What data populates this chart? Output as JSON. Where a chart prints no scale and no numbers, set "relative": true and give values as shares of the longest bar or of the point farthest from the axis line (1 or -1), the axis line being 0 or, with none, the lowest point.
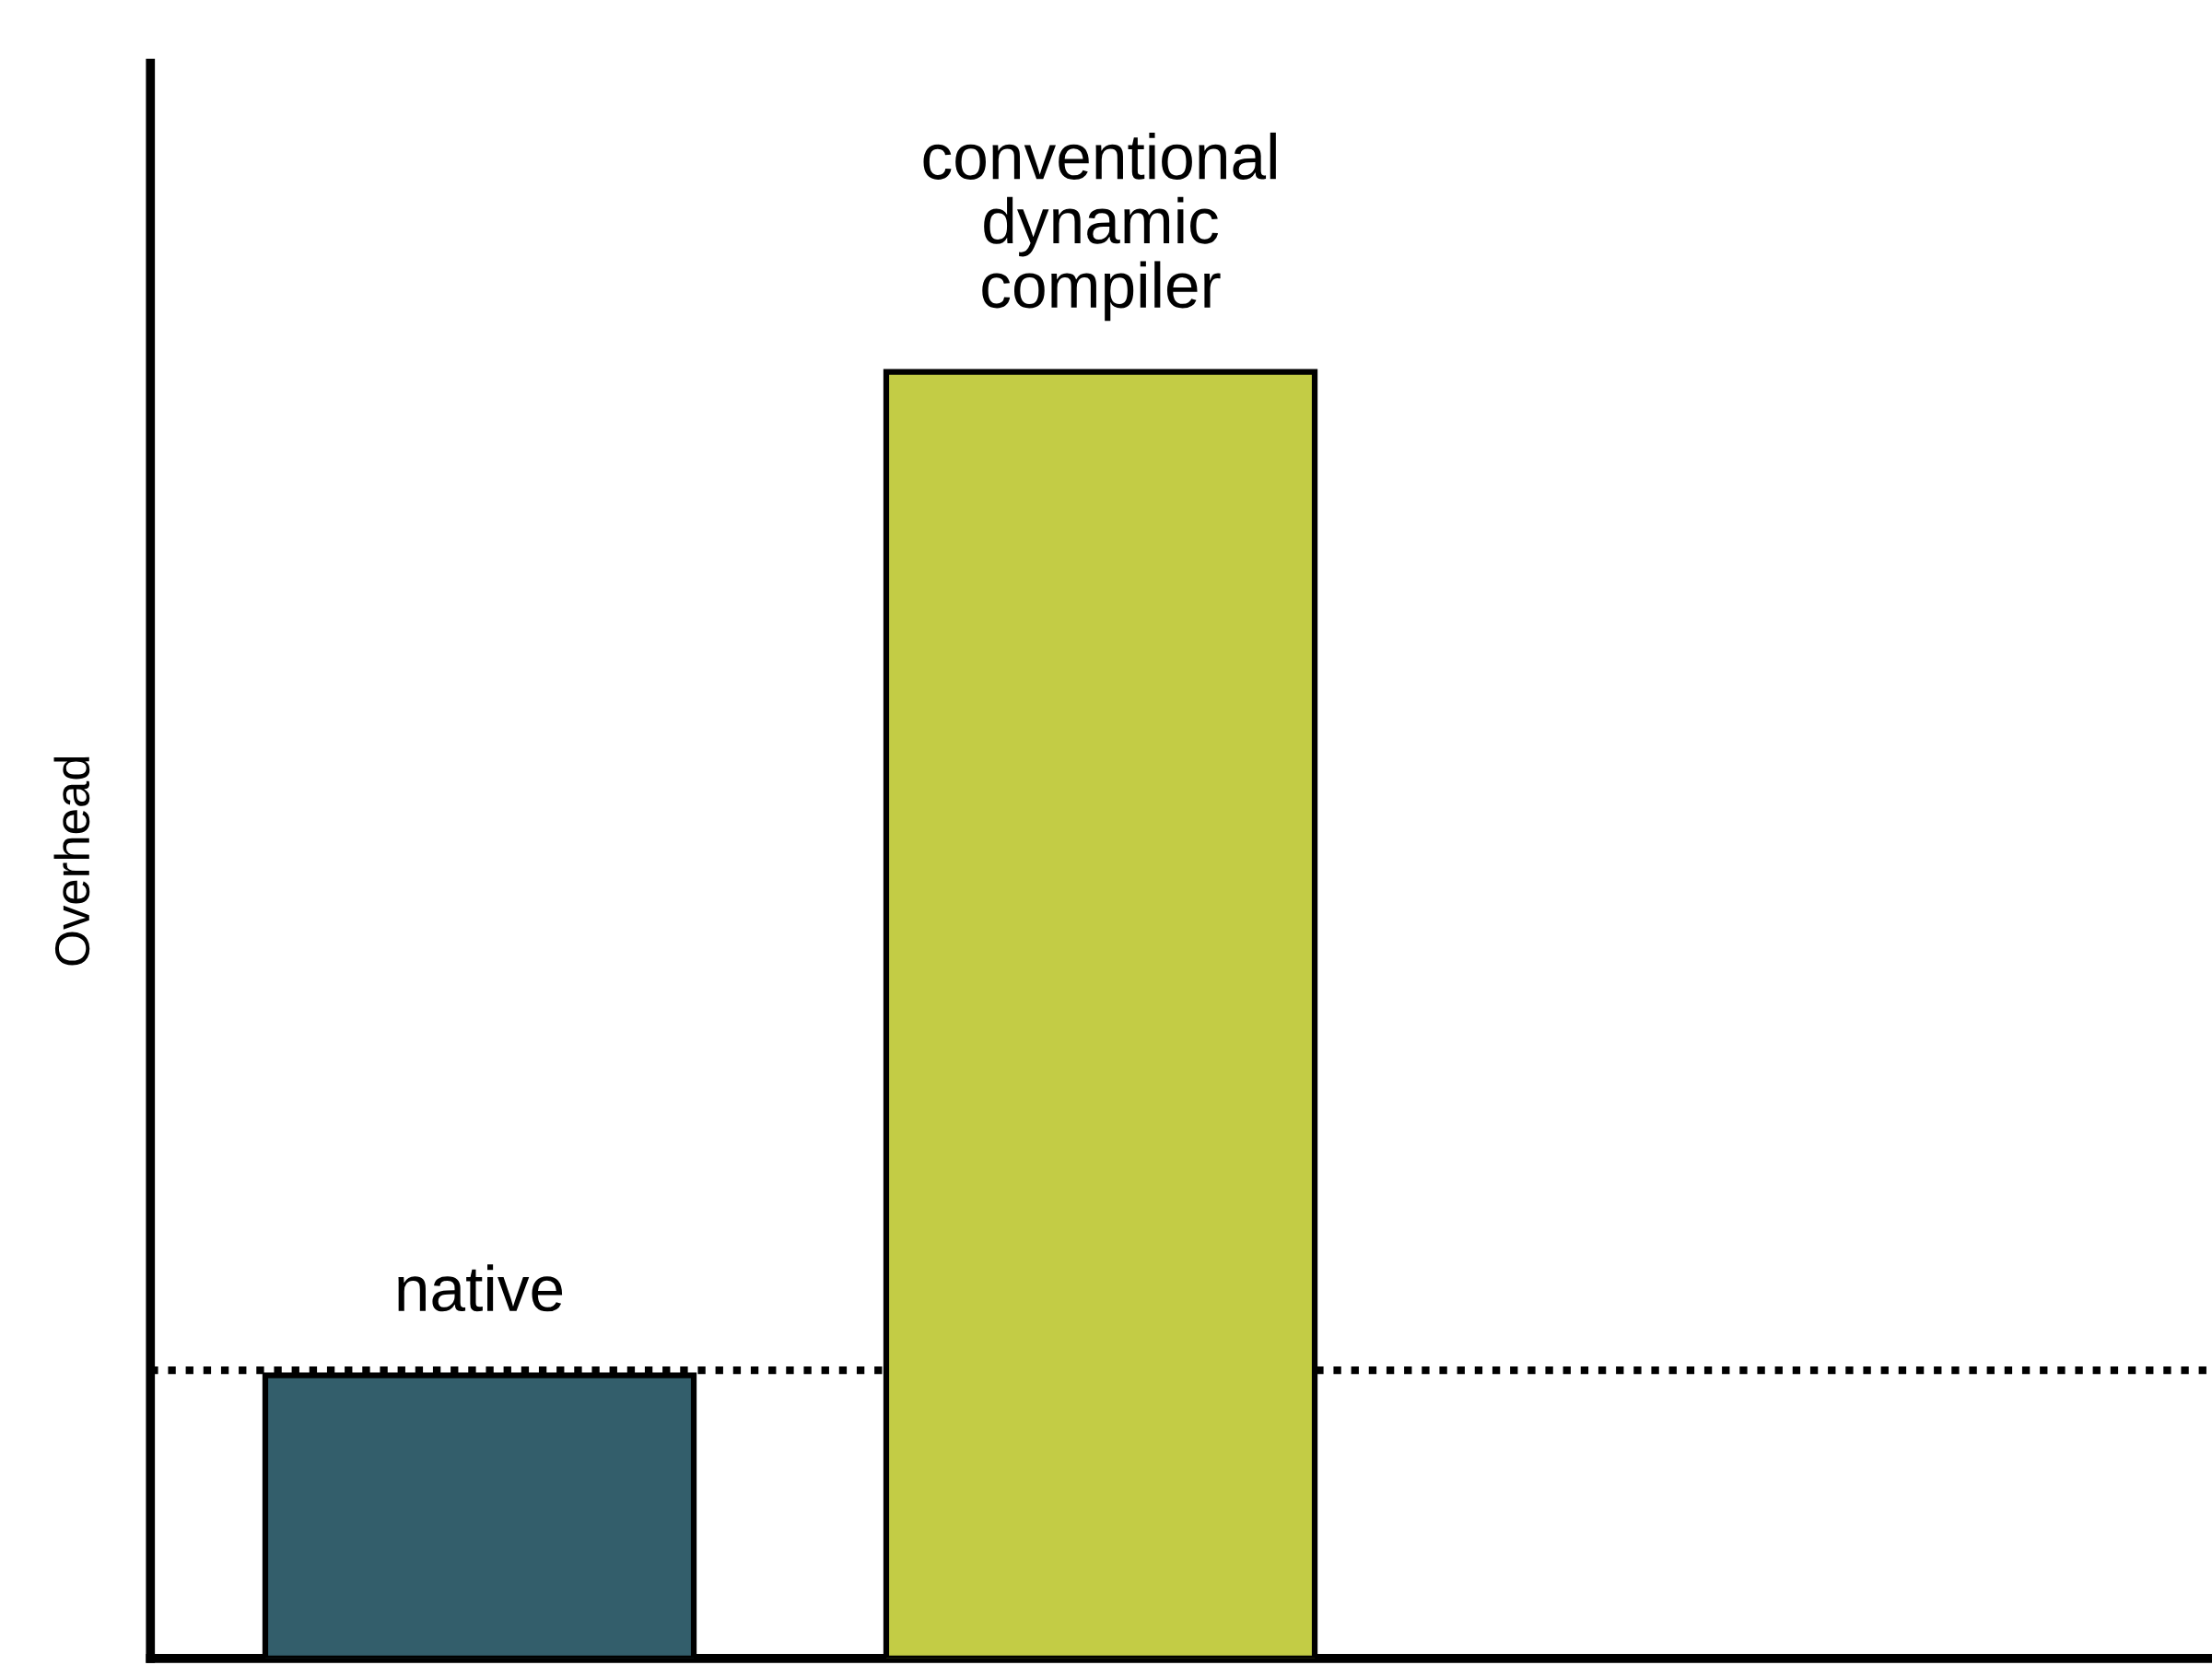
{
  "chart_data": {
    "type": "bar",
    "ylabel": "Overhead",
    "categories": [
      "native",
      "conventional\ndynamic\ncompiler"
    ],
    "values": [
      0.22,
      1
    ],
    "colors": [
      "#335e6b",
      "#c3cc45"
    ],
    "relative": true,
    "ref_lines": [
      {
        "axis": "y",
        "value": 0.224,
        "color": "#000000",
        "line_style": "dotted"
      }
    ]
  }
}
